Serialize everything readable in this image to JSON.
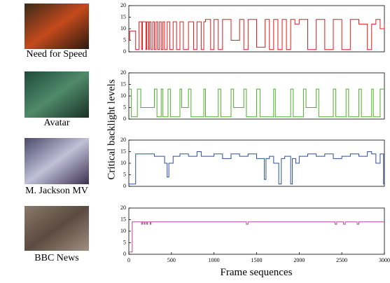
{
  "figure": {
    "ylabel": "Critical backlight levels",
    "xlabel": "Frame sequences"
  },
  "chart_data": [
    {
      "type": "line",
      "step": true,
      "caption": "Need for Speed",
      "xlim": [
        0,
        3000
      ],
      "ylim": [
        0,
        20
      ],
      "yticks": [
        0,
        5,
        10,
        15,
        20
      ],
      "series": [
        {
          "color": "#e41a1c",
          "x": [
            0,
            10,
            80,
            120,
            150,
            160,
            200,
            210,
            230,
            240,
            260,
            280,
            300,
            320,
            340,
            360,
            380,
            400,
            420,
            450,
            480,
            520,
            560,
            600,
            640,
            700,
            760,
            800,
            850,
            880,
            900,
            960,
            1000,
            1050,
            1100,
            1200,
            1300,
            1350,
            1400,
            1500,
            1600,
            1650,
            1700,
            1750,
            1800,
            1850,
            1900,
            1950,
            2000,
            2100,
            2200,
            2300,
            2400,
            2500,
            2600,
            2700,
            2800,
            2850,
            2900,
            2950,
            3000
          ],
          "values": [
            5,
            9,
            1,
            13,
            1,
            13,
            1,
            13,
            1,
            13,
            1,
            13,
            1,
            13,
            1,
            13,
            1,
            13,
            1,
            13,
            1,
            13,
            1,
            13,
            1,
            13,
            1,
            13,
            1,
            13,
            14,
            1,
            14,
            1,
            14,
            5,
            14,
            1,
            14,
            2,
            14,
            1,
            14,
            1,
            14,
            1,
            14,
            12,
            14,
            1,
            14,
            1,
            14,
            1,
            14,
            12,
            1,
            12,
            14,
            10,
            12
          ]
        }
      ]
    },
    {
      "type": "line",
      "step": true,
      "caption": "Avatar",
      "xlim": [
        0,
        3000
      ],
      "ylim": [
        0,
        20
      ],
      "yticks": [
        0,
        5,
        10,
        15,
        20
      ],
      "series": [
        {
          "color": "#4daf2a",
          "x": [
            0,
            30,
            100,
            140,
            300,
            330,
            380,
            400,
            460,
            490,
            600,
            620,
            700,
            730,
            880,
            900,
            1050,
            1080,
            1200,
            1230,
            1350,
            1380,
            1500,
            1540,
            1700,
            1720,
            1900,
            1930,
            2050,
            2080,
            2200,
            2230,
            2400,
            2430,
            2550,
            2580,
            2700,
            2730,
            2850,
            2870,
            2950,
            3000
          ],
          "values": [
            13,
            1,
            13,
            5,
            13,
            1,
            13,
            1,
            13,
            1,
            13,
            5,
            13,
            1,
            13,
            1,
            13,
            1,
            13,
            5,
            13,
            1,
            13,
            1,
            13,
            1,
            13,
            1,
            13,
            5,
            13,
            1,
            13,
            1,
            13,
            1,
            13,
            1,
            13,
            1,
            13,
            13
          ]
        }
      ]
    },
    {
      "type": "line",
      "step": true,
      "caption": "M. Jackson MV",
      "xlim": [
        0,
        3000
      ],
      "ylim": [
        0,
        20
      ],
      "yticks": [
        0,
        5,
        10,
        15,
        20
      ],
      "series": [
        {
          "color": "#2c4f9e",
          "x": [
            0,
            80,
            200,
            300,
            420,
            450,
            470,
            520,
            600,
            700,
            800,
            850,
            1000,
            1100,
            1200,
            1300,
            1400,
            1500,
            1590,
            1610,
            1650,
            1700,
            1760,
            1790,
            1830,
            1900,
            1920,
            1960,
            2000,
            2100,
            2200,
            2300,
            2400,
            2500,
            2600,
            2700,
            2800,
            2850,
            2900,
            2950,
            2990,
            3000
          ],
          "values": [
            1,
            14,
            14,
            13,
            10,
            4,
            10,
            13,
            14,
            13,
            15,
            13,
            14,
            12,
            14,
            13,
            14,
            12,
            3,
            12,
            13,
            10,
            1,
            12,
            13,
            1,
            12,
            10,
            13,
            14,
            13,
            14,
            12,
            13,
            14,
            13,
            15,
            14,
            10,
            14,
            1,
            1
          ]
        }
      ]
    },
    {
      "type": "line",
      "step": true,
      "caption": "BBC News",
      "xlim": [
        0,
        3000
      ],
      "ylim": [
        0,
        20
      ],
      "yticks": [
        0,
        5,
        10,
        15,
        20
      ],
      "xticks": [
        0,
        500,
        1000,
        1500,
        2000,
        2500,
        3000
      ],
      "series": [
        {
          "color": "#b5449b",
          "x": [
            0,
            40,
            150,
            160,
            180,
            190,
            210,
            220,
            250,
            260,
            1380,
            1400,
            2420,
            2440,
            2520,
            2540,
            2680,
            2700,
            3000
          ],
          "values": [
            1,
            14,
            13,
            14,
            13,
            14,
            13,
            14,
            13,
            14,
            13,
            14,
            13,
            14,
            13,
            14,
            13,
            14,
            14
          ]
        }
      ]
    }
  ]
}
